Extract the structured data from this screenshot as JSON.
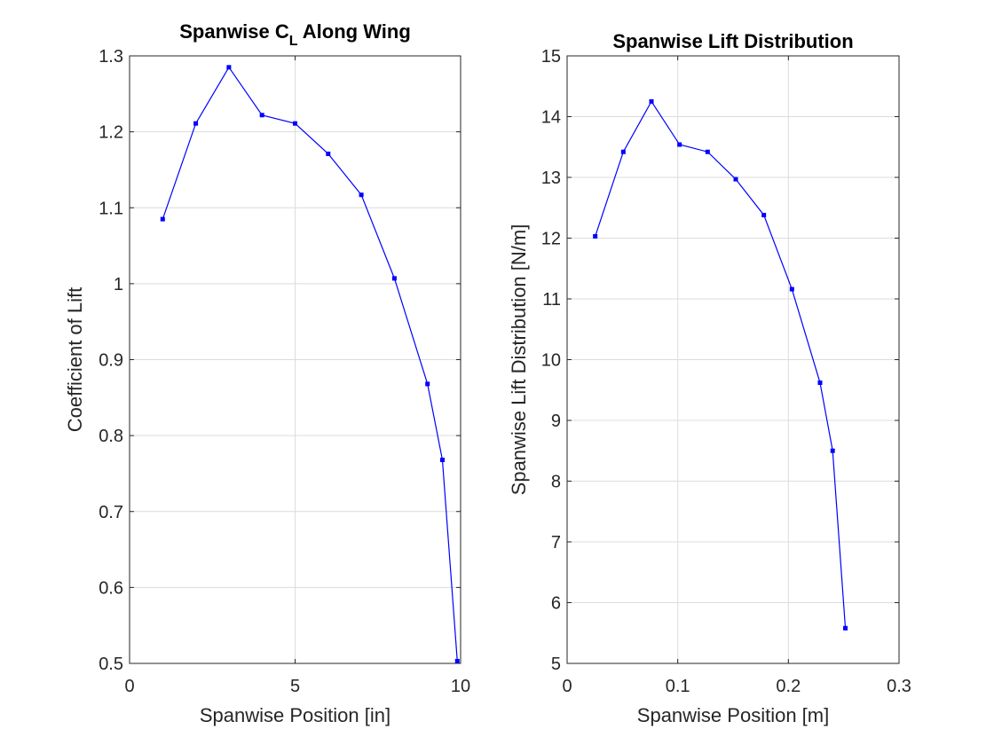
{
  "chart_data": [
    {
      "type": "line",
      "title": "Spanwise C",
      "title_subscript": "L",
      "title_suffix": " Along Wing",
      "xlabel": "Spanwise Position [in]",
      "ylabel": "Coefficient of Lift",
      "xlim": [
        0,
        10
      ],
      "ylim": [
        0.5,
        1.3
      ],
      "xticks": [
        0,
        5,
        10
      ],
      "xtick_labels": [
        "0",
        "5",
        "10"
      ],
      "yticks": [
        0.5,
        0.6,
        0.7,
        0.8,
        0.9,
        1.0,
        1.1,
        1.2,
        1.3
      ],
      "ytick_labels": [
        "0.5",
        "0.6",
        "0.7",
        "0.8",
        "0.9",
        "1",
        "1.1",
        "1.2",
        "1.3"
      ],
      "grid": true,
      "series": [
        {
          "color": "#0000ff",
          "marker": "square",
          "x": [
            1,
            2,
            3,
            4,
            5,
            6,
            7,
            8,
            9,
            9.45,
            9.9
          ],
          "y": [
            1.085,
            1.211,
            1.285,
            1.222,
            1.211,
            1.171,
            1.117,
            1.007,
            0.868,
            0.768,
            0.503
          ]
        }
      ]
    },
    {
      "type": "line",
      "title": "Spanwise Lift Distribution",
      "xlabel": "Spanwise Position [m]",
      "ylabel": "Spanwise Lift Distribution [N/m]",
      "xlim": [
        0,
        0.3
      ],
      "ylim": [
        5,
        15
      ],
      "xticks": [
        0,
        0.1,
        0.2,
        0.3
      ],
      "xtick_labels": [
        "0",
        "0.1",
        "0.2",
        "0.3"
      ],
      "yticks": [
        5,
        6,
        7,
        8,
        9,
        10,
        11,
        12,
        13,
        14,
        15
      ],
      "ytick_labels": [
        "5",
        "6",
        "7",
        "8",
        "9",
        "10",
        "11",
        "12",
        "13",
        "14",
        "15"
      ],
      "grid": true,
      "series": [
        {
          "color": "#0000ff",
          "marker": "square",
          "x": [
            0.0254,
            0.0508,
            0.0762,
            0.1016,
            0.127,
            0.1524,
            0.1778,
            0.2032,
            0.2286,
            0.24,
            0.2515
          ],
          "y": [
            12.03,
            13.42,
            14.25,
            13.54,
            13.42,
            12.97,
            12.38,
            11.16,
            9.62,
            8.5,
            5.58
          ]
        }
      ]
    }
  ]
}
